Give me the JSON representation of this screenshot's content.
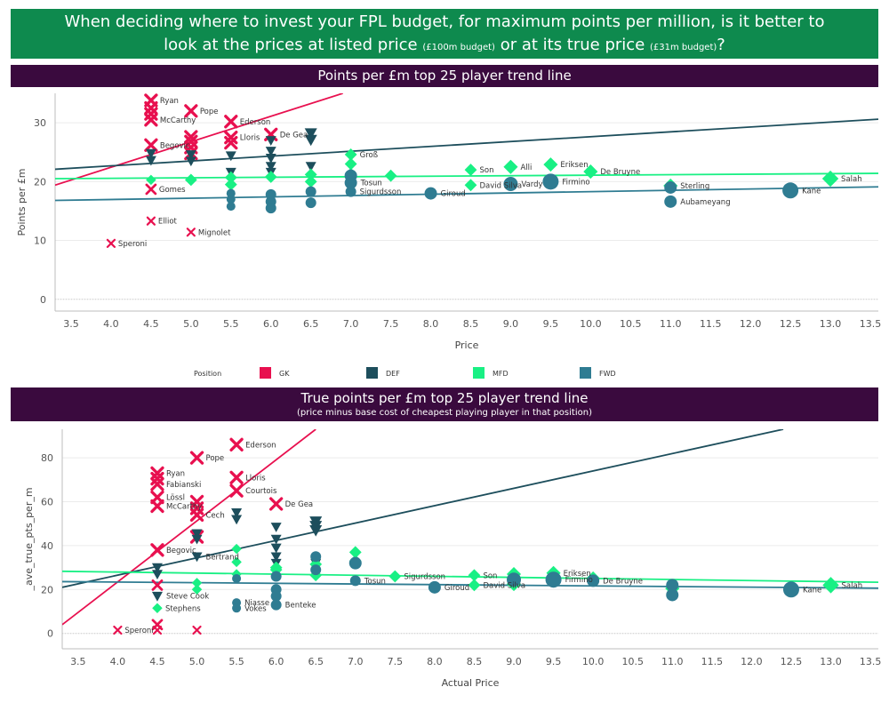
{
  "banner": {
    "line1": "When deciding where to invest your FPL budget, for maximum points per million, is it better to",
    "line2a": "look at the prices at listed price",
    "line2b": "(£100m budget)",
    "line2c": "or at its true price",
    "line2d": "(£31m budget)",
    "line2e": "?"
  },
  "colors": {
    "GK": "#e8104f",
    "DEF": "#1d4e5c",
    "MFD": "#19f084",
    "FWD": "#2f7c92"
  },
  "legend": {
    "title": "Position",
    "items": [
      {
        "key": "GK",
        "label": "GK"
      },
      {
        "key": "DEF",
        "label": "DEF"
      },
      {
        "key": "MFD",
        "label": "MFD"
      },
      {
        "key": "FWD",
        "label": "FWD"
      }
    ]
  },
  "chart_data": [
    {
      "type": "scatter",
      "title": "Points per £m top 25 player trend line",
      "xlabel": "Price",
      "ylabel": "Points per £m",
      "xlim": [
        3.3,
        13.6
      ],
      "ylim": [
        -2,
        35
      ],
      "xticks": [
        3.5,
        4.0,
        4.5,
        5.0,
        5.5,
        6.0,
        6.5,
        7.0,
        7.5,
        8.0,
        8.5,
        9.0,
        9.5,
        10.0,
        10.5,
        11.0,
        11.5,
        12.0,
        12.5,
        13.0,
        13.5
      ],
      "yticks": [
        0,
        10,
        20,
        30
      ],
      "trendlines": [
        {
          "pos": "GK",
          "p1": [
            3.3,
            19.4
          ],
          "p2": [
            6.9,
            35
          ]
        },
        {
          "pos": "DEF",
          "p1": [
            3.3,
            22.1
          ],
          "p2": [
            13.6,
            30.6
          ]
        },
        {
          "pos": "MFD",
          "p1": [
            3.3,
            20.5
          ],
          "p2": [
            13.6,
            21.4
          ]
        },
        {
          "pos": "FWD",
          "p1": [
            3.3,
            16.8
          ],
          "p2": [
            13.6,
            19.1
          ]
        }
      ],
      "points": [
        {
          "x": 4.0,
          "y": 9.5,
          "pos": "GK",
          "s": 4,
          "label": "Speroni"
        },
        {
          "x": 4.5,
          "y": 33.8,
          "pos": "GK",
          "s": 6,
          "label": "Ryan"
        },
        {
          "x": 4.5,
          "y": 32.5,
          "pos": "GK",
          "s": 6
        },
        {
          "x": 4.5,
          "y": 31.5,
          "pos": "GK",
          "s": 6
        },
        {
          "x": 4.5,
          "y": 30.5,
          "pos": "GK",
          "s": 6,
          "label": "McCarthy"
        },
        {
          "x": 4.5,
          "y": 26.2,
          "pos": "GK",
          "s": 6,
          "label": "Begovic"
        },
        {
          "x": 4.5,
          "y": 18.7,
          "pos": "GK",
          "s": 5,
          "label": "Gomes"
        },
        {
          "x": 4.5,
          "y": 13.3,
          "pos": "GK",
          "s": 4,
          "label": "Elliot"
        },
        {
          "x": 5.0,
          "y": 32.0,
          "pos": "GK",
          "s": 6,
          "label": "Pope"
        },
        {
          "x": 5.0,
          "y": 27.6,
          "pos": "GK",
          "s": 6
        },
        {
          "x": 5.0,
          "y": 26.8,
          "pos": "GK",
          "s": 6
        },
        {
          "x": 5.0,
          "y": 25.8,
          "pos": "GK",
          "s": 6
        },
        {
          "x": 5.0,
          "y": 24.8,
          "pos": "GK",
          "s": 6
        },
        {
          "x": 5.0,
          "y": 11.4,
          "pos": "GK",
          "s": 4,
          "label": "Mignolet"
        },
        {
          "x": 5.5,
          "y": 30.2,
          "pos": "GK",
          "s": 6,
          "label": "Ederson"
        },
        {
          "x": 5.5,
          "y": 27.5,
          "pos": "GK",
          "s": 6,
          "label": "Lloris"
        },
        {
          "x": 5.5,
          "y": 26.6,
          "pos": "GK",
          "s": 6
        },
        {
          "x": 6.0,
          "y": 28.0,
          "pos": "GK",
          "s": 6,
          "label": "De Gea"
        },
        {
          "x": 4.5,
          "y": 24.8,
          "pos": "DEF",
          "s": 6
        },
        {
          "x": 4.5,
          "y": 23.6,
          "pos": "DEF",
          "s": 6
        },
        {
          "x": 5.0,
          "y": 24.6,
          "pos": "DEF",
          "s": 6
        },
        {
          "x": 5.0,
          "y": 23.5,
          "pos": "DEF",
          "s": 6
        },
        {
          "x": 5.5,
          "y": 24.4,
          "pos": "DEF",
          "s": 6
        },
        {
          "x": 5.5,
          "y": 21.6,
          "pos": "DEF",
          "s": 6
        },
        {
          "x": 6.0,
          "y": 27.0,
          "pos": "DEF",
          "s": 6
        },
        {
          "x": 6.0,
          "y": 25.2,
          "pos": "DEF",
          "s": 6
        },
        {
          "x": 6.0,
          "y": 24.0,
          "pos": "DEF",
          "s": 6
        },
        {
          "x": 6.0,
          "y": 22.6,
          "pos": "DEF",
          "s": 6
        },
        {
          "x": 6.0,
          "y": 21.6,
          "pos": "DEF",
          "s": 6
        },
        {
          "x": 6.5,
          "y": 28.2,
          "pos": "DEF",
          "s": 7
        },
        {
          "x": 6.5,
          "y": 27.1,
          "pos": "DEF",
          "s": 7
        },
        {
          "x": 6.5,
          "y": 22.6,
          "pos": "DEF",
          "s": 6
        },
        {
          "x": 4.5,
          "y": 20.3,
          "pos": "MFD",
          "s": 5
        },
        {
          "x": 5.0,
          "y": 20.3,
          "pos": "MFD",
          "s": 6
        },
        {
          "x": 5.5,
          "y": 20.7,
          "pos": "MFD",
          "s": 6
        },
        {
          "x": 5.5,
          "y": 19.5,
          "pos": "MFD",
          "s": 6
        },
        {
          "x": 6.0,
          "y": 20.8,
          "pos": "MFD",
          "s": 6
        },
        {
          "x": 6.5,
          "y": 21.2,
          "pos": "MFD",
          "s": 6
        },
        {
          "x": 6.5,
          "y": 20.0,
          "pos": "MFD",
          "s": 6
        },
        {
          "x": 7.0,
          "y": 24.6,
          "pos": "MFD",
          "s": 6,
          "label": "Groß"
        },
        {
          "x": 7.0,
          "y": 23.0,
          "pos": "MFD",
          "s": 6
        },
        {
          "x": 7.0,
          "y": 21.3,
          "pos": "MFD",
          "s": 6
        },
        {
          "x": 7.5,
          "y": 21.0,
          "pos": "MFD",
          "s": 6
        },
        {
          "x": 8.5,
          "y": 22.0,
          "pos": "MFD",
          "s": 6,
          "label": "Son"
        },
        {
          "x": 8.5,
          "y": 19.4,
          "pos": "MFD",
          "s": 6,
          "label": "David Silva"
        },
        {
          "x": 9.0,
          "y": 22.5,
          "pos": "MFD",
          "s": 7,
          "label": "Alli"
        },
        {
          "x": 9.5,
          "y": 22.9,
          "pos": "MFD",
          "s": 7,
          "label": "Eriksen"
        },
        {
          "x": 10.0,
          "y": 21.7,
          "pos": "MFD",
          "s": 7,
          "label": "De Bruyne"
        },
        {
          "x": 11.0,
          "y": 19.3,
          "pos": "MFD",
          "s": 7,
          "label": "Sterling"
        },
        {
          "x": 13.0,
          "y": 20.5,
          "pos": "MFD",
          "s": 8,
          "label": "Salah"
        },
        {
          "x": 5.5,
          "y": 18.0,
          "pos": "FWD",
          "s": 5
        },
        {
          "x": 5.5,
          "y": 17.0,
          "pos": "FWD",
          "s": 5
        },
        {
          "x": 5.5,
          "y": 15.8,
          "pos": "FWD",
          "s": 5
        },
        {
          "x": 6.0,
          "y": 17.8,
          "pos": "FWD",
          "s": 6
        },
        {
          "x": 6.0,
          "y": 16.6,
          "pos": "FWD",
          "s": 6
        },
        {
          "x": 6.0,
          "y": 15.5,
          "pos": "FWD",
          "s": 6
        },
        {
          "x": 6.5,
          "y": 18.3,
          "pos": "FWD",
          "s": 6
        },
        {
          "x": 6.5,
          "y": 16.4,
          "pos": "FWD",
          "s": 6
        },
        {
          "x": 7.0,
          "y": 21.0,
          "pos": "FWD",
          "s": 7
        },
        {
          "x": 7.0,
          "y": 19.8,
          "pos": "FWD",
          "s": 7,
          "label": "Tosun"
        },
        {
          "x": 7.0,
          "y": 18.3,
          "pos": "FWD",
          "s": 6,
          "label": "Sigurdsson"
        },
        {
          "x": 8.0,
          "y": 18.0,
          "pos": "FWD",
          "s": 7,
          "label": "Giroud"
        },
        {
          "x": 9.0,
          "y": 19.6,
          "pos": "FWD",
          "s": 8,
          "label": "Vardy"
        },
        {
          "x": 9.5,
          "y": 20.0,
          "pos": "FWD",
          "s": 9,
          "label": "Firmino"
        },
        {
          "x": 11.0,
          "y": 19.0,
          "pos": "FWD",
          "s": 7
        },
        {
          "x": 11.0,
          "y": 16.6,
          "pos": "FWD",
          "s": 7,
          "label": "Aubameyang"
        },
        {
          "x": 12.5,
          "y": 18.5,
          "pos": "FWD",
          "s": 9,
          "label": "Kane"
        }
      ]
    },
    {
      "type": "scatter",
      "title": "True points per £m top 25 player trend line",
      "subtitle": "(price minus base cost of cheapest playing player in that position)",
      "xlabel": "Actual Price",
      "ylabel": "_ave_true_pts_per_m",
      "xlim": [
        3.3,
        13.6
      ],
      "ylim": [
        -7,
        93
      ],
      "xticks": [
        3.5,
        4.0,
        4.5,
        5.0,
        5.5,
        6.0,
        6.5,
        7.0,
        7.5,
        8.0,
        8.5,
        9.0,
        9.5,
        10.0,
        10.5,
        11.0,
        11.5,
        12.0,
        12.5,
        13.0,
        13.5
      ],
      "yticks": [
        0,
        20,
        40,
        60,
        80
      ],
      "trendlines": [
        {
          "pos": "GK",
          "p1": [
            3.3,
            4
          ],
          "p2": [
            6.5,
            93
          ]
        },
        {
          "pos": "DEF",
          "p1": [
            3.3,
            21
          ],
          "p2": [
            12.4,
            93
          ]
        },
        {
          "pos": "MFD",
          "p1": [
            3.3,
            28.3
          ],
          "p2": [
            13.6,
            23.3
          ]
        },
        {
          "pos": "FWD",
          "p1": [
            3.3,
            23.6
          ],
          "p2": [
            13.6,
            20.6
          ]
        }
      ],
      "points": [
        {
          "x": 4.0,
          "y": 1.5,
          "pos": "GK",
          "s": 4,
          "label": "Speroni"
        },
        {
          "x": 4.5,
          "y": 73.0,
          "pos": "GK",
          "s": 6,
          "label": "Ryan"
        },
        {
          "x": 4.5,
          "y": 70.5,
          "pos": "GK",
          "s": 6
        },
        {
          "x": 4.5,
          "y": 68.0,
          "pos": "GK",
          "s": 6,
          "label": "Fabianski"
        },
        {
          "x": 4.5,
          "y": 62.0,
          "pos": "GK",
          "s": 6,
          "label": "Lössl"
        },
        {
          "x": 4.5,
          "y": 58.0,
          "pos": "GK",
          "s": 6,
          "label": "McCarthy"
        },
        {
          "x": 4.5,
          "y": 38.0,
          "pos": "GK",
          "s": 6,
          "label": "Begovic"
        },
        {
          "x": 4.5,
          "y": 22.0,
          "pos": "GK",
          "s": 5
        },
        {
          "x": 4.5,
          "y": 4.0,
          "pos": "GK",
          "s": 5
        },
        {
          "x": 4.5,
          "y": 1.5,
          "pos": "GK",
          "s": 4
        },
        {
          "x": 5.0,
          "y": 80.0,
          "pos": "GK",
          "s": 6,
          "label": "Pope"
        },
        {
          "x": 5.0,
          "y": 60.0,
          "pos": "GK",
          "s": 6
        },
        {
          "x": 5.0,
          "y": 57.0,
          "pos": "GK",
          "s": 6
        },
        {
          "x": 5.0,
          "y": 54.0,
          "pos": "GK",
          "s": 6,
          "label": "Cech"
        },
        {
          "x": 5.0,
          "y": 44.0,
          "pos": "GK",
          "s": 6
        },
        {
          "x": 5.0,
          "y": 1.5,
          "pos": "GK",
          "s": 4
        },
        {
          "x": 5.5,
          "y": 86.0,
          "pos": "GK",
          "s": 6,
          "label": "Ederson"
        },
        {
          "x": 5.5,
          "y": 71.0,
          "pos": "GK",
          "s": 6,
          "label": "Lloris"
        },
        {
          "x": 5.5,
          "y": 65.0,
          "pos": "GK",
          "s": 6,
          "label": "Courtois"
        },
        {
          "x": 6.0,
          "y": 59.0,
          "pos": "GK",
          "s": 6,
          "label": "De Gea"
        },
        {
          "x": 4.5,
          "y": 30.0,
          "pos": "DEF",
          "s": 6
        },
        {
          "x": 4.5,
          "y": 27.0,
          "pos": "DEF",
          "s": 6
        },
        {
          "x": 4.5,
          "y": 17.0,
          "pos": "DEF",
          "s": 6,
          "label": "Steve Cook"
        },
        {
          "x": 5.0,
          "y": 45.5,
          "pos": "DEF",
          "s": 6
        },
        {
          "x": 5.0,
          "y": 43.0,
          "pos": "DEF",
          "s": 6
        },
        {
          "x": 5.0,
          "y": 35.0,
          "pos": "DEF",
          "s": 6,
          "label": "Bertrand"
        },
        {
          "x": 5.5,
          "y": 55.0,
          "pos": "DEF",
          "s": 6
        },
        {
          "x": 5.5,
          "y": 52.0,
          "pos": "DEF",
          "s": 6
        },
        {
          "x": 6.0,
          "y": 48.5,
          "pos": "DEF",
          "s": 6
        },
        {
          "x": 6.0,
          "y": 43.0,
          "pos": "DEF",
          "s": 6
        },
        {
          "x": 6.0,
          "y": 39.0,
          "pos": "DEF",
          "s": 6
        },
        {
          "x": 6.0,
          "y": 35.0,
          "pos": "DEF",
          "s": 6
        },
        {
          "x": 6.0,
          "y": 32.0,
          "pos": "DEF",
          "s": 6
        },
        {
          "x": 6.5,
          "y": 51.0,
          "pos": "DEF",
          "s": 7
        },
        {
          "x": 6.5,
          "y": 49.0,
          "pos": "DEF",
          "s": 7
        },
        {
          "x": 6.5,
          "y": 47.0,
          "pos": "DEF",
          "s": 7
        },
        {
          "x": 6.5,
          "y": 32.0,
          "pos": "DEF",
          "s": 6
        },
        {
          "x": 4.5,
          "y": 11.5,
          "pos": "MFD",
          "s": 5,
          "label": "Stephens"
        },
        {
          "x": 5.0,
          "y": 23.0,
          "pos": "MFD",
          "s": 5
        },
        {
          "x": 5.0,
          "y": 20.0,
          "pos": "MFD",
          "s": 5
        },
        {
          "x": 5.5,
          "y": 38.5,
          "pos": "MFD",
          "s": 5
        },
        {
          "x": 5.5,
          "y": 32.5,
          "pos": "MFD",
          "s": 5
        },
        {
          "x": 5.5,
          "y": 27.0,
          "pos": "MFD",
          "s": 5
        },
        {
          "x": 6.0,
          "y": 30.0,
          "pos": "MFD",
          "s": 6
        },
        {
          "x": 6.0,
          "y": 29.0,
          "pos": "MFD",
          "s": 6
        },
        {
          "x": 6.5,
          "y": 31.5,
          "pos": "MFD",
          "s": 6
        },
        {
          "x": 6.5,
          "y": 26.5,
          "pos": "MFD",
          "s": 6
        },
        {
          "x": 7.0,
          "y": 37.0,
          "pos": "MFD",
          "s": 6
        },
        {
          "x": 7.0,
          "y": 33.0,
          "pos": "MFD",
          "s": 6
        },
        {
          "x": 7.5,
          "y": 26.0,
          "pos": "MFD",
          "s": 6,
          "label": "Sigurdsson"
        },
        {
          "x": 8.5,
          "y": 26.5,
          "pos": "MFD",
          "s": 6,
          "label": "Son"
        },
        {
          "x": 8.5,
          "y": 22.0,
          "pos": "MFD",
          "s": 6,
          "label": "David Silva"
        },
        {
          "x": 9.0,
          "y": 27.0,
          "pos": "MFD",
          "s": 7
        },
        {
          "x": 9.0,
          "y": 22.5,
          "pos": "MFD",
          "s": 7
        },
        {
          "x": 9.5,
          "y": 27.5,
          "pos": "MFD",
          "s": 7,
          "label": "Eriksen"
        },
        {
          "x": 10.0,
          "y": 25.0,
          "pos": "MFD",
          "s": 7
        },
        {
          "x": 11.0,
          "y": 20.5,
          "pos": "MFD",
          "s": 7
        },
        {
          "x": 13.0,
          "y": 22.0,
          "pos": "MFD",
          "s": 8,
          "label": "Salah"
        },
        {
          "x": 5.5,
          "y": 25.0,
          "pos": "FWD",
          "s": 5
        },
        {
          "x": 5.5,
          "y": 14.0,
          "pos": "FWD",
          "s": 5,
          "label": "Niasse"
        },
        {
          "x": 5.5,
          "y": 11.5,
          "pos": "FWD",
          "s": 5,
          "label": "Vokes"
        },
        {
          "x": 6.0,
          "y": 26.0,
          "pos": "FWD",
          "s": 6
        },
        {
          "x": 6.0,
          "y": 20.0,
          "pos": "FWD",
          "s": 6
        },
        {
          "x": 6.0,
          "y": 17.0,
          "pos": "FWD",
          "s": 6
        },
        {
          "x": 6.0,
          "y": 13.0,
          "pos": "FWD",
          "s": 6,
          "label": "Benteke"
        },
        {
          "x": 6.5,
          "y": 35.0,
          "pos": "FWD",
          "s": 6
        },
        {
          "x": 6.5,
          "y": 29.0,
          "pos": "FWD",
          "s": 6
        },
        {
          "x": 7.0,
          "y": 32.0,
          "pos": "FWD",
          "s": 7
        },
        {
          "x": 7.0,
          "y": 24.0,
          "pos": "FWD",
          "s": 6,
          "label": "Tosun"
        },
        {
          "x": 8.0,
          "y": 21.0,
          "pos": "FWD",
          "s": 7,
          "label": "Giroud"
        },
        {
          "x": 9.0,
          "y": 24.5,
          "pos": "FWD",
          "s": 8
        },
        {
          "x": 9.5,
          "y": 24.5,
          "pos": "FWD",
          "s": 9,
          "label": "Firmino"
        },
        {
          "x": 10.0,
          "y": 24.0,
          "pos": "FWD",
          "s": 7,
          "label": "De Bruyne"
        },
        {
          "x": 11.0,
          "y": 22.0,
          "pos": "FWD",
          "s": 7
        },
        {
          "x": 11.0,
          "y": 17.5,
          "pos": "FWD",
          "s": 7
        },
        {
          "x": 12.5,
          "y": 20.0,
          "pos": "FWD",
          "s": 9,
          "label": "Kane"
        }
      ]
    }
  ]
}
